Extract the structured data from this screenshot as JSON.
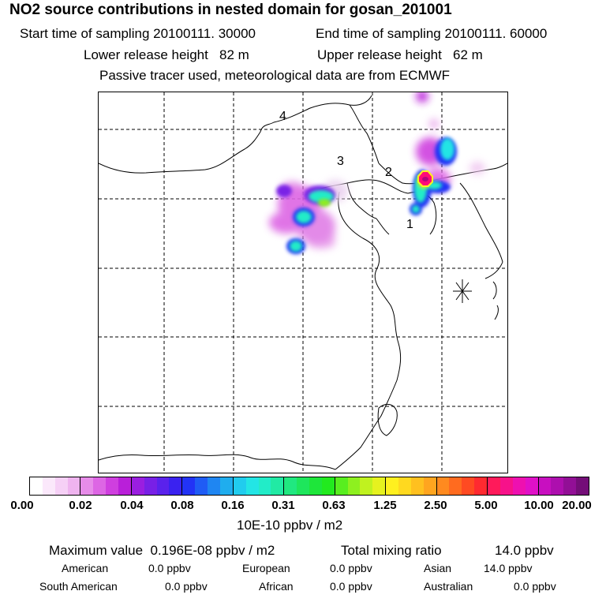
{
  "title": "NO2 source contributions in nested domain for gosan_201001",
  "start_label": "Start time of sampling",
  "start_value": "20100111. 30000",
  "end_label": "End time of sampling",
  "end_value": "20100111. 60000",
  "lower_label": "Lower release height",
  "lower_value": "82 m",
  "upper_label": "Upper release height",
  "upper_value": "62 m",
  "note": "Passive tracer used, meteorological data are from ECMWF",
  "region_labels": [
    "1",
    "2",
    "3",
    "4"
  ],
  "colorbar": {
    "ticks": [
      "0.00",
      "0.02",
      "0.04",
      "0.08",
      "0.16",
      "0.31",
      "0.63",
      "1.25",
      "2.50",
      "5.00",
      "10.00",
      "20.00"
    ],
    "unit": "10E-10 ppbv / m2",
    "colors": [
      [
        "#ffffff",
        "#fbe8fb",
        "#f6d0f6",
        "#efb4ef"
      ],
      [
        "#e78ce9",
        "#dd66e4",
        "#cf3fdf",
        "#b91fd9"
      ],
      [
        "#9a1ee0",
        "#7820e6",
        "#5a22ec",
        "#3a22f0"
      ],
      [
        "#2233f6",
        "#1f5cf5",
        "#1f86f2",
        "#1fadee"
      ],
      [
        "#21ccee",
        "#23e5e5",
        "#22ecc8",
        "#21eaa4"
      ],
      [
        "#20e880",
        "#1ee65c",
        "#1ee63a",
        "#22ea1e"
      ],
      [
        "#58ee1f",
        "#8ef01f",
        "#c0f21f",
        "#e6f21f"
      ],
      [
        "#fff01f",
        "#ffd91f",
        "#ffc01f",
        "#ffa51f"
      ],
      [
        "#ff8a1f",
        "#ff6b1f",
        "#ff4a22",
        "#ff2a30"
      ],
      [
        "#ff1a5a",
        "#f7128a",
        "#ee10b0",
        "#e010c8"
      ],
      [
        "#c80fc0",
        "#ad0fae",
        "#920f96",
        "#740e78"
      ]
    ]
  },
  "stats": {
    "max_label": "Maximum value",
    "max_value": "0.196E-08 ppbv / m2",
    "total_label": "Total mixing ratio",
    "total_value": "14.0 ppbv"
  },
  "regions": [
    {
      "name": "American",
      "value": "0.0 ppbv"
    },
    {
      "name": "European",
      "value": "0.0 ppbv"
    },
    {
      "name": "Asian",
      "value": "14.0 ppbv"
    },
    {
      "name": "South American",
      "value": "0.0 ppbv"
    },
    {
      "name": "African",
      "value": "0.0 ppbv"
    },
    {
      "name": "Australian",
      "value": "0.0 ppbv"
    }
  ],
  "colors": {
    "plume_core": "#ff0a78",
    "receptor_marker": "#000000"
  }
}
